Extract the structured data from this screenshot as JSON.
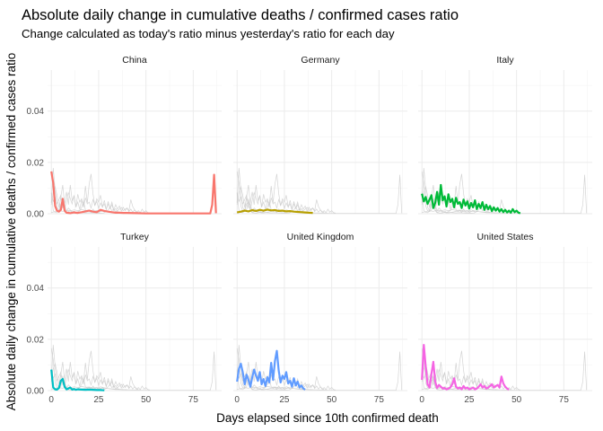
{
  "chart_data": {
    "type": "line",
    "title": "Absolute daily change in cumulative deaths / confirmed cases ratio",
    "subtitle": "Change calculated as today's ratio minus yesterday's ratio for each day",
    "xlabel": "Days elapsed since 10th confirmed death",
    "ylabel": "Absolute daily change in cumulative deaths / confirmed cases ratio",
    "xlim": [
      -2,
      90
    ],
    "ylim": [
      0,
      0.056
    ],
    "x_ticks": [
      0,
      25,
      50,
      75
    ],
    "x_tick_labels": [
      "0",
      "25",
      "50",
      "75"
    ],
    "y_ticks": [
      0,
      0.02,
      0.04
    ],
    "y_tick_labels": [
      "0.00",
      "0.02",
      "0.04"
    ],
    "grid": true,
    "legend": "none",
    "background_series_color": "#cccccc",
    "facets": [
      {
        "name": "China",
        "color": "#F8766D",
        "x": [
          0,
          1,
          2,
          3,
          4,
          5,
          6,
          7,
          8,
          9,
          10,
          12,
          14,
          16,
          18,
          20,
          22,
          24,
          26,
          28,
          30,
          32,
          34,
          36,
          38,
          40,
          45,
          50,
          55,
          60,
          65,
          70,
          75,
          80,
          84,
          85,
          86,
          87
        ],
        "values": [
          0.0165,
          0.012,
          0.003,
          0.0012,
          0.0008,
          0.0015,
          0.0058,
          0.0012,
          0.0004,
          0.0003,
          0.0002,
          0.0005,
          0.0003,
          0.0006,
          0.0009,
          0.0012,
          0.0008,
          0.0006,
          0.0015,
          0.0011,
          0.0008,
          0.0006,
          0.0004,
          0.0004,
          0.0003,
          0.0003,
          0.0002,
          0.0001,
          0.0001,
          0.0001,
          0.0001,
          0.0001,
          0.0001,
          0.0001,
          0.0001,
          0.0035,
          0.0152,
          0.0002
        ]
      },
      {
        "name": "Germany",
        "color": "#B79F00",
        "x": [
          0,
          2,
          4,
          6,
          8,
          10,
          12,
          14,
          16,
          18,
          20,
          22,
          24,
          26,
          28,
          30,
          32,
          34,
          36,
          38,
          40
        ],
        "values": [
          0.0005,
          0.0008,
          0.0012,
          0.0009,
          0.0014,
          0.0011,
          0.0015,
          0.0012,
          0.0016,
          0.0013,
          0.0014,
          0.0011,
          0.0012,
          0.0009,
          0.001,
          0.0008,
          0.0007,
          0.0006,
          0.0005,
          0.0004,
          0.0003
        ]
      },
      {
        "name": "Italy",
        "color": "#00BA38",
        "x": [
          0,
          1,
          2,
          3,
          4,
          5,
          6,
          7,
          8,
          9,
          10,
          11,
          12,
          13,
          14,
          15,
          16,
          17,
          18,
          19,
          20,
          21,
          22,
          23,
          24,
          25,
          26,
          27,
          28,
          29,
          30,
          31,
          32,
          33,
          34,
          35,
          36,
          37,
          38,
          39,
          40,
          41,
          42,
          43,
          44,
          45,
          46,
          47,
          48,
          49,
          50,
          51,
          52
        ],
        "values": [
          0.0078,
          0.0048,
          0.0065,
          0.0038,
          0.0055,
          0.0072,
          0.0022,
          0.0042,
          0.0085,
          0.0035,
          0.0112,
          0.0052,
          0.0068,
          0.0028,
          0.0076,
          0.0045,
          0.0058,
          0.0025,
          0.0062,
          0.0038,
          0.0045,
          0.0022,
          0.0055,
          0.0032,
          0.0048,
          0.002,
          0.0042,
          0.0025,
          0.0052,
          0.0018,
          0.0038,
          0.0022,
          0.0045,
          0.0015,
          0.0035,
          0.0018,
          0.003,
          0.001,
          0.0025,
          0.0012,
          0.0022,
          0.0008,
          0.0018,
          0.0006,
          0.0015,
          0.0005,
          0.0012,
          0.0004,
          0.0018,
          0.0006,
          0.0012,
          0.0004,
          0.0002
        ]
      },
      {
        "name": "Turkey",
        "color": "#00BFC4",
        "x": [
          0,
          1,
          2,
          3,
          4,
          5,
          6,
          7,
          8,
          9,
          10,
          11,
          12,
          13,
          14,
          16,
          18,
          20,
          22,
          24,
          26,
          28
        ],
        "values": [
          0.0082,
          0.0012,
          0.0005,
          0.0004,
          0.001,
          0.0038,
          0.0045,
          0.0015,
          0.0005,
          0.0008,
          0.0012,
          0.0004,
          0.0006,
          0.0003,
          0.0005,
          0.0004,
          0.0003,
          0.0004,
          0.0003,
          0.0002,
          0.0002,
          0.0001
        ]
      },
      {
        "name": "United Kingdom",
        "color": "#619CFF",
        "x": [
          0,
          1,
          2,
          3,
          4,
          5,
          6,
          7,
          8,
          9,
          10,
          11,
          12,
          13,
          14,
          15,
          16,
          17,
          18,
          19,
          20,
          21,
          22,
          23,
          24,
          25,
          26,
          27,
          28,
          29,
          30,
          31,
          32,
          33,
          34,
          35,
          36
        ],
        "values": [
          0.0035,
          0.0085,
          0.0105,
          0.0072,
          0.0025,
          0.0062,
          0.0042,
          0.0015,
          0.0052,
          0.0082,
          0.0058,
          0.0038,
          0.0072,
          0.0025,
          0.0045,
          0.0018,
          0.0052,
          0.0032,
          0.0108,
          0.0042,
          0.0115,
          0.0155,
          0.0078,
          0.0032,
          0.0058,
          0.0045,
          0.0072,
          0.0028,
          0.0038,
          0.0015,
          0.0048,
          0.002,
          0.0035,
          0.0012,
          0.002,
          0.0008,
          0.0004
        ]
      },
      {
        "name": "United States",
        "color": "#F564E3",
        "x": [
          0,
          1,
          2,
          3,
          4,
          5,
          6,
          7,
          8,
          9,
          10,
          11,
          12,
          13,
          14,
          15,
          16,
          17,
          18,
          19,
          20,
          21,
          22,
          23,
          24,
          25,
          26,
          27,
          28,
          29,
          30,
          31,
          32,
          33,
          34,
          35,
          36,
          37,
          38,
          39,
          40,
          41,
          42,
          43,
          44,
          45,
          46
        ],
        "values": [
          0.0042,
          0.0178,
          0.0095,
          0.0025,
          0.0012,
          0.0065,
          0.0112,
          0.0035,
          0.001,
          0.0022,
          0.0015,
          0.0008,
          0.001,
          0.0005,
          0.0008,
          0.0012,
          0.0025,
          0.0048,
          0.0015,
          0.0008,
          0.0012,
          0.0005,
          0.0018,
          0.0008,
          0.0012,
          0.0005,
          0.0008,
          0.0012,
          0.0005,
          0.0008,
          0.0015,
          0.0025,
          0.0012,
          0.0018,
          0.0008,
          0.0012,
          0.0018,
          0.0025,
          0.0012,
          0.0018,
          0.0022,
          0.0012,
          0.0055,
          0.0028,
          0.0015,
          0.0008,
          0.0004
        ]
      }
    ]
  }
}
